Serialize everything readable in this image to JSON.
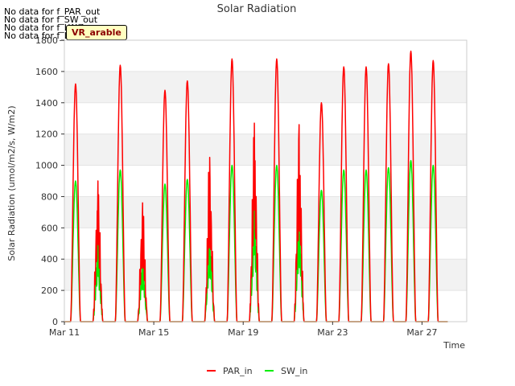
{
  "annotations": {
    "no_data": [
      "No data for f_PAR_out",
      "No data for f_SW_out",
      "No data for f_LW_in",
      "No data for f_LW_out"
    ],
    "badge": "VR_arable"
  },
  "chart_data": {
    "type": "line",
    "title": "Solar Radiation",
    "xlabel": "Time",
    "ylabel": "Solar Radiation (umol/m2/s, W/m2)",
    "xlim": [
      "2024-03-11",
      "2024-03-29"
    ],
    "ylim": [
      0,
      1800
    ],
    "yticks": [
      0,
      200,
      400,
      600,
      800,
      1000,
      1200,
      1400,
      1600,
      1800
    ],
    "xticks": [
      {
        "date": "2024-03-11",
        "label": "Mar 11"
      },
      {
        "date": "2024-03-15",
        "label": "Mar 15"
      },
      {
        "date": "2024-03-19",
        "label": "Mar 19"
      },
      {
        "date": "2024-03-23",
        "label": "Mar 23"
      },
      {
        "date": "2024-03-27",
        "label": "Mar 27"
      }
    ],
    "grid": true,
    "legend_position": "bottom-center",
    "series": [
      {
        "name": "PAR_in",
        "color": "#ff0000",
        "daily_peaks": [
          {
            "date": "2024-03-11",
            "peak": 1520
          },
          {
            "date": "2024-03-12",
            "peak": 900
          },
          {
            "date": "2024-03-13",
            "peak": 1640
          },
          {
            "date": "2024-03-14",
            "peak": 760
          },
          {
            "date": "2024-03-15",
            "peak": 1480
          },
          {
            "date": "2024-03-16",
            "peak": 1540
          },
          {
            "date": "2024-03-17",
            "peak": 1050
          },
          {
            "date": "2024-03-18",
            "peak": 1680
          },
          {
            "date": "2024-03-19",
            "peak": 1270
          },
          {
            "date": "2024-03-20",
            "peak": 1680
          },
          {
            "date": "2024-03-21",
            "peak": 1260
          },
          {
            "date": "2024-03-22",
            "peak": 1400
          },
          {
            "date": "2024-03-23",
            "peak": 1630
          },
          {
            "date": "2024-03-24",
            "peak": 1630
          },
          {
            "date": "2024-03-25",
            "peak": 1650
          },
          {
            "date": "2024-03-26",
            "peak": 1730
          },
          {
            "date": "2024-03-27",
            "peak": 1670
          }
        ]
      },
      {
        "name": "SW_in",
        "color": "#00ee00",
        "daily_peaks": [
          {
            "date": "2024-03-11",
            "peak": 900
          },
          {
            "date": "2024-03-12",
            "peak": 530
          },
          {
            "date": "2024-03-13",
            "peak": 970
          },
          {
            "date": "2024-03-14",
            "peak": 450
          },
          {
            "date": "2024-03-15",
            "peak": 880
          },
          {
            "date": "2024-03-16",
            "peak": 910
          },
          {
            "date": "2024-03-17",
            "peak": 620
          },
          {
            "date": "2024-03-18",
            "peak": 1000
          },
          {
            "date": "2024-03-19",
            "peak": 760
          },
          {
            "date": "2024-03-20",
            "peak": 1000
          },
          {
            "date": "2024-03-21",
            "peak": 750
          },
          {
            "date": "2024-03-22",
            "peak": 840
          },
          {
            "date": "2024-03-23",
            "peak": 970
          },
          {
            "date": "2024-03-24",
            "peak": 970
          },
          {
            "date": "2024-03-25",
            "peak": 985
          },
          {
            "date": "2024-03-26",
            "peak": 1030
          },
          {
            "date": "2024-03-27",
            "peak": 1000
          }
        ]
      }
    ]
  }
}
